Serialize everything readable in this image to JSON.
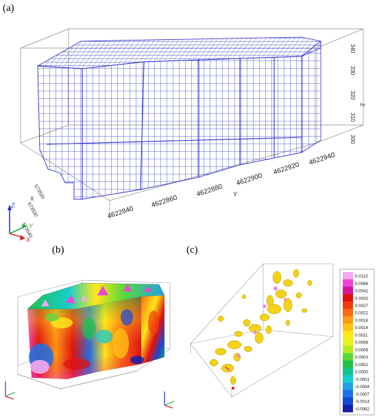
{
  "panels": {
    "a": {
      "label": "(a)"
    },
    "b": {
      "label": "(b)"
    },
    "c": {
      "label": "(c)"
    }
  },
  "panel_a": {
    "y_axis_title": "Y",
    "x_axis_title": "X",
    "z_axis_title": "Z",
    "y_ticks": [
      "4622840",
      "4622860",
      "4622880",
      "4622900",
      "4622920",
      "4622940"
    ],
    "x_ticks": [
      "573540",
      "573530",
      "573520"
    ],
    "z_ticks": [
      "300",
      "310",
      "320",
      "330",
      "340"
    ],
    "mesh_color": "#2222cc"
  },
  "triad": {
    "z": "Z",
    "y": "Y",
    "x": "X"
  },
  "colorbar": {
    "values": [
      "0.0122",
      "0.0066",
      "0.0041",
      "0.0033",
      "0.0027",
      "0.0022",
      "0.0018",
      "0.0014",
      "0.0011",
      "0.0008",
      "0.0006",
      "0.0003",
      "0.0001",
      "0.0000",
      "-0.0001",
      "-0.0004",
      "-0.0007",
      "-0.0014",
      "-0.0062"
    ],
    "colors": [
      "#f6a8f0",
      "#ee44d8",
      "#d4149a",
      "#e01010",
      "#f23c10",
      "#fa6a12",
      "#ff9a14",
      "#ffc416",
      "#ffe81a",
      "#e8f21e",
      "#b4ec22",
      "#5ad83a",
      "#1ec24a",
      "#16c28e",
      "#18cccc",
      "#22a0e4",
      "#1c72e8",
      "#1848d8",
      "#1620b0"
    ]
  }
}
